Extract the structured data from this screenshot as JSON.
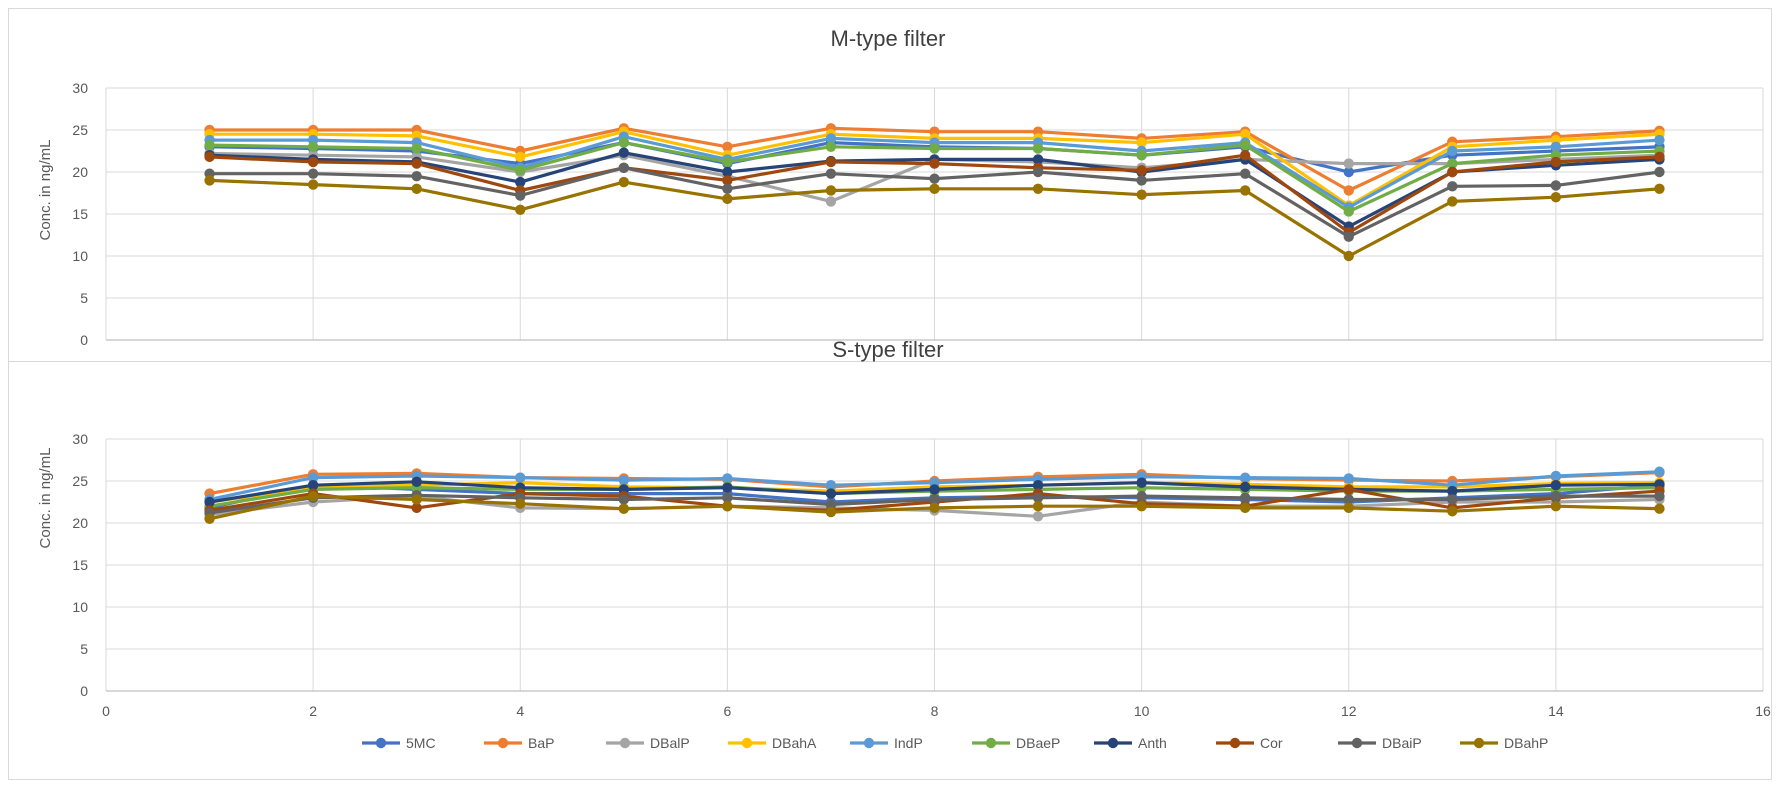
{
  "chart_data": [
    {
      "type": "line",
      "title": "M-type filter",
      "xlabel": "",
      "ylabel": "Conc. in ng/mL",
      "xlim": [
        0,
        16
      ],
      "ylim": [
        0,
        30
      ],
      "x_ticks": [
        0,
        2,
        4,
        6,
        8,
        10,
        12,
        14,
        16
      ],
      "y_ticks": [
        0,
        5,
        10,
        15,
        20,
        25,
        30
      ],
      "grid": true,
      "x": [
        1,
        2,
        3,
        4,
        5,
        6,
        7,
        8,
        9,
        10,
        11,
        12,
        13,
        14,
        15
      ],
      "series": [
        {
          "name": "5MC",
          "color": "#4472C4",
          "values": [
            23.0,
            22.8,
            22.5,
            21.0,
            23.5,
            21.0,
            23.5,
            23.0,
            22.8,
            22.0,
            23.0,
            20.0,
            22.0,
            22.5,
            23.0
          ]
        },
        {
          "name": "BaP",
          "color": "#ED7D31",
          "values": [
            25.0,
            25.0,
            25.0,
            22.5,
            25.2,
            23.0,
            25.2,
            24.8,
            24.8,
            24.0,
            24.8,
            17.8,
            23.6,
            24.2,
            24.9
          ]
        },
        {
          "name": "DBalP",
          "color": "#A5A5A5",
          "values": [
            22.2,
            22.0,
            21.8,
            20.0,
            22.0,
            19.5,
            16.5,
            21.5,
            21.2,
            20.5,
            21.5,
            21.0,
            21.0,
            21.5,
            22.0
          ]
        },
        {
          "name": "DBahA",
          "color": "#FFC000",
          "values": [
            24.5,
            24.5,
            24.3,
            21.8,
            24.8,
            22.0,
            24.5,
            24.0,
            24.0,
            23.5,
            24.5,
            16.0,
            23.0,
            23.8,
            24.5
          ]
        },
        {
          "name": "IndP",
          "color": "#5B9BD5",
          "values": [
            23.8,
            23.8,
            23.5,
            20.5,
            24.2,
            21.5,
            24.0,
            23.5,
            23.5,
            22.5,
            23.5,
            15.8,
            22.5,
            23.0,
            23.8
          ]
        },
        {
          "name": "DBaeP",
          "color": "#70AD47",
          "values": [
            23.2,
            23.0,
            22.8,
            20.2,
            23.5,
            21.2,
            23.0,
            22.8,
            22.8,
            22.0,
            23.2,
            15.3,
            21.0,
            22.0,
            22.5
          ]
        },
        {
          "name": "Anth",
          "color": "#264478",
          "values": [
            22.0,
            21.5,
            21.2,
            18.8,
            22.3,
            20.0,
            21.3,
            21.5,
            21.5,
            20.0,
            21.5,
            13.5,
            20.0,
            20.8,
            21.5
          ]
        },
        {
          "name": "Cor",
          "color": "#9E480E",
          "values": [
            21.8,
            21.2,
            21.0,
            17.8,
            20.5,
            19.0,
            21.2,
            21.0,
            20.5,
            20.2,
            22.0,
            12.8,
            20.0,
            21.2,
            21.8
          ]
        },
        {
          "name": "DBaiP",
          "color": "#636363",
          "values": [
            19.8,
            19.8,
            19.5,
            17.2,
            20.5,
            18.0,
            19.8,
            19.2,
            20.0,
            19.0,
            19.8,
            12.3,
            18.3,
            18.4,
            20.0
          ]
        },
        {
          "name": "DBahP",
          "color": "#997300",
          "values": [
            19.0,
            18.5,
            18.0,
            15.5,
            18.8,
            16.8,
            17.8,
            18.0,
            18.0,
            17.3,
            17.8,
            10.0,
            16.5,
            17.0,
            18.0
          ]
        }
      ]
    },
    {
      "type": "line",
      "title": "S-type filter",
      "xlabel": "",
      "ylabel": "Conc. in ng/mL",
      "xlim": [
        0,
        16
      ],
      "ylim": [
        0,
        30
      ],
      "x_ticks": [
        0,
        2,
        4,
        6,
        8,
        10,
        12,
        14,
        16
      ],
      "y_ticks": [
        0,
        5,
        10,
        15,
        20,
        25,
        30
      ],
      "grid": true,
      "x": [
        1,
        2,
        3,
        4,
        5,
        6,
        7,
        8,
        9,
        10,
        11,
        12,
        13,
        14,
        15
      ],
      "series": [
        {
          "name": "5MC",
          "color": "#4472C4",
          "values": [
            21.8,
            24.5,
            24.0,
            23.5,
            23.5,
            23.5,
            22.5,
            23.0,
            23.2,
            23.0,
            22.8,
            22.5,
            23.0,
            23.5,
            24.5
          ]
        },
        {
          "name": "BaP",
          "color": "#ED7D31",
          "values": [
            23.5,
            25.8,
            25.9,
            25.4,
            25.3,
            25.2,
            24.3,
            25.0,
            25.5,
            25.8,
            25.3,
            25.1,
            25.0,
            25.5,
            26.0
          ]
        },
        {
          "name": "DBalP",
          "color": "#A5A5A5",
          "values": [
            21.0,
            22.5,
            23.2,
            21.8,
            21.7,
            22.0,
            21.8,
            21.5,
            20.8,
            22.5,
            22.0,
            22.0,
            22.5,
            22.5,
            22.8
          ]
        },
        {
          "name": "DBahA",
          "color": "#FFC000",
          "values": [
            22.5,
            24.2,
            24.5,
            24.8,
            24.3,
            24.2,
            23.8,
            24.3,
            24.5,
            24.8,
            24.6,
            24.3,
            24.3,
            24.7,
            24.8
          ]
        },
        {
          "name": "IndP",
          "color": "#5B9BD5",
          "values": [
            22.8,
            25.4,
            25.6,
            25.4,
            25.1,
            25.3,
            24.5,
            24.8,
            25.2,
            25.5,
            25.4,
            25.3,
            24.5,
            25.6,
            26.1
          ]
        },
        {
          "name": "DBaeP",
          "color": "#70AD47",
          "values": [
            22.0,
            24.0,
            24.2,
            24.0,
            24.0,
            24.3,
            23.5,
            23.8,
            24.0,
            24.2,
            24.0,
            23.8,
            23.8,
            24.0,
            24.2
          ]
        },
        {
          "name": "Anth",
          "color": "#264478",
          "values": [
            22.5,
            24.5,
            24.9,
            24.2,
            24.0,
            24.2,
            23.5,
            24.0,
            24.5,
            24.8,
            24.3,
            24.0,
            23.8,
            24.5,
            24.6
          ]
        },
        {
          "name": "Cor",
          "color": "#9E480E",
          "values": [
            21.5,
            23.5,
            21.8,
            23.5,
            23.2,
            22.0,
            21.5,
            22.5,
            23.5,
            22.3,
            22.0,
            24.0,
            21.8,
            23.0,
            23.8
          ]
        },
        {
          "name": "DBaiP",
          "color": "#636363",
          "values": [
            21.2,
            23.0,
            23.3,
            23.0,
            22.8,
            23.0,
            22.2,
            22.8,
            23.0,
            23.2,
            23.0,
            22.8,
            22.8,
            23.2,
            23.2
          ]
        },
        {
          "name": "DBahP",
          "color": "#997300",
          "values": [
            20.5,
            23.2,
            22.8,
            22.3,
            21.7,
            22.0,
            21.3,
            21.8,
            22.0,
            22.0,
            21.8,
            21.8,
            21.4,
            22.0,
            21.7
          ]
        }
      ]
    }
  ]
}
